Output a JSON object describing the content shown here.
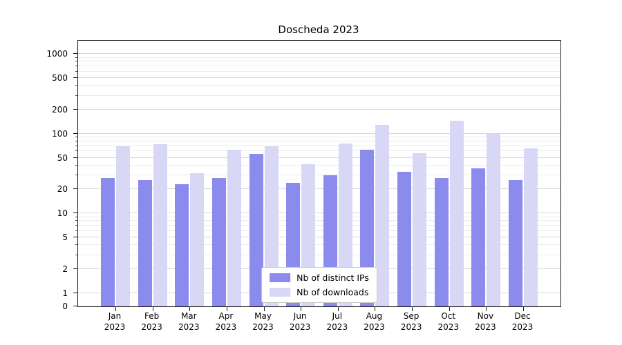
{
  "title": "Doscheda 2023",
  "colors": {
    "ips": "#8b8bee",
    "downloads": "#d8d8f6",
    "grid_major": "#d8d8d8",
    "grid_minor": "#ebebeb",
    "axis": "#1a1a1a",
    "legend_border": "#c9c9c9",
    "background": "#ffffff"
  },
  "chart_data": {
    "type": "bar",
    "title": "Doscheda 2023",
    "categories": [
      "Jan 2023",
      "Feb 2023",
      "Mar 2023",
      "Apr 2023",
      "May 2023",
      "Jun 2023",
      "Jul 2023",
      "Aug 2023",
      "Sep 2023",
      "Oct 2023",
      "Nov 2023",
      "Dec 2023"
    ],
    "series": [
      {
        "name": "Nb of distinct IPs",
        "color_key": "ips",
        "values": [
          28,
          26,
          23,
          28,
          56,
          24,
          30,
          63,
          33,
          28,
          37,
          26
        ]
      },
      {
        "name": "Nb of downloads",
        "color_key": "downloads",
        "values": [
          70,
          74,
          32,
          63,
          70,
          41,
          76,
          128,
          57,
          145,
          100,
          66
        ]
      }
    ],
    "y_axis": {
      "scale": "symlog",
      "ticks": [
        0,
        1,
        2,
        5,
        10,
        20,
        50,
        100,
        200,
        500,
        1000
      ],
      "minor_ticks": [
        3,
        4,
        6,
        7,
        8,
        9,
        30,
        40,
        60,
        70,
        80,
        90,
        300,
        400,
        600,
        700,
        800,
        900
      ],
      "linear_frac": 0.05,
      "decade_frac": 0.3,
      "grid": true
    },
    "x_axis": {
      "grid": false
    },
    "legend": {
      "position": "lower center",
      "entries": [
        "Nb of distinct IPs",
        "Nb of downloads"
      ]
    }
  }
}
